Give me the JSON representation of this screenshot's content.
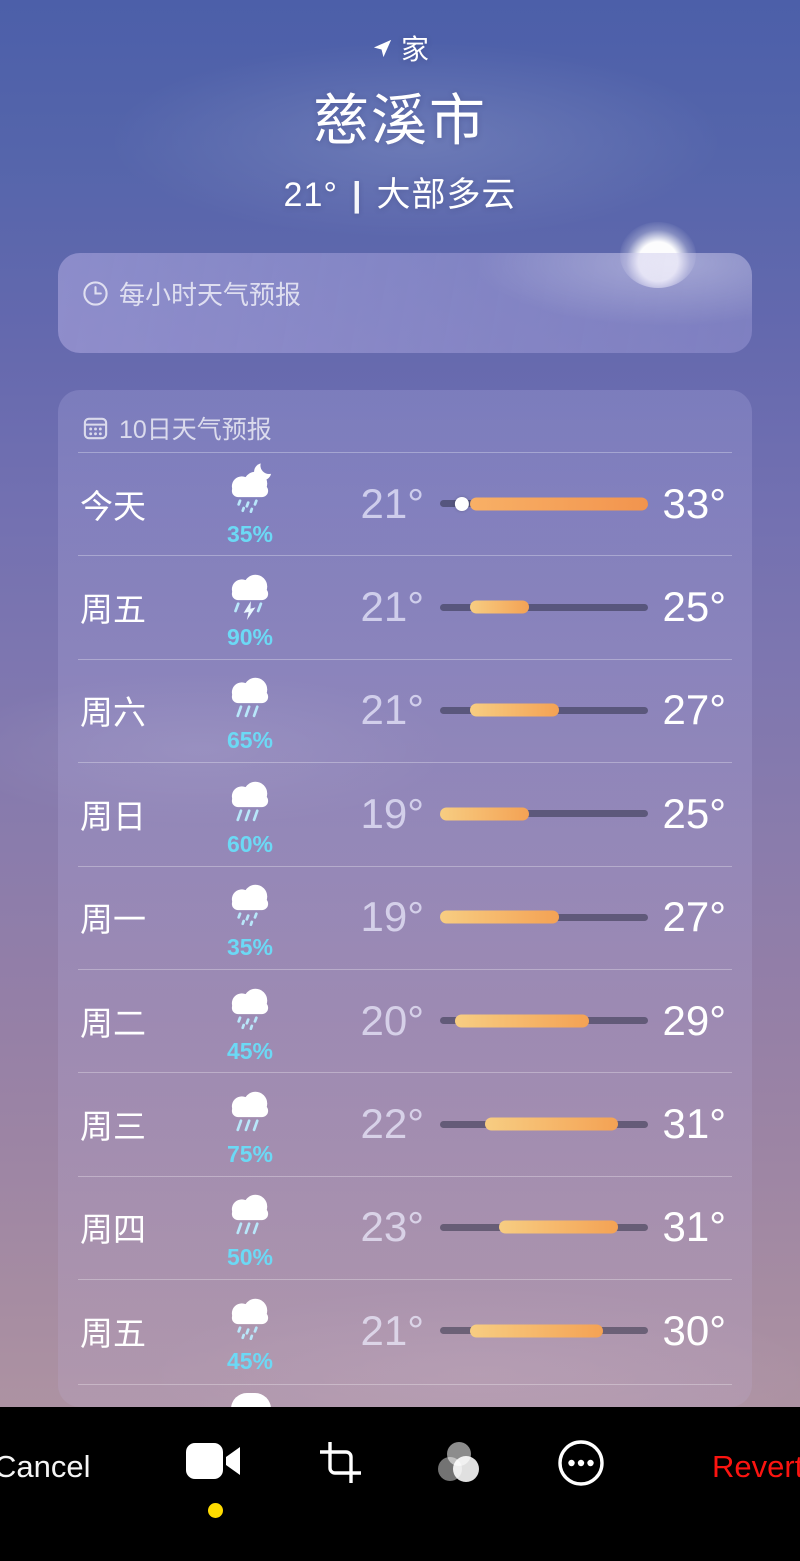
{
  "header": {
    "home_label": "家",
    "city": "慈溪市",
    "current_temp": "21°",
    "separator": "|",
    "condition": "大部多云"
  },
  "hourly_card": {
    "title": "每小时天气预报",
    "icon": "clock-icon"
  },
  "daily_card": {
    "title": "10日天气预报",
    "icon": "calendar-icon",
    "scale_min": 19,
    "scale_max": 33,
    "days": [
      {
        "day": "今天",
        "icon": "cloud-moon-drizzle",
        "precip": "35%",
        "low": "21°",
        "high": "33°",
        "low_val": 21,
        "high_val": 33,
        "current": 21
      },
      {
        "day": "周五",
        "icon": "cloud-bolt-rain",
        "precip": "90%",
        "low": "21°",
        "high": "25°",
        "low_val": 21,
        "high_val": 25
      },
      {
        "day": "周六",
        "icon": "cloud-rain",
        "precip": "65%",
        "low": "21°",
        "high": "27°",
        "low_val": 21,
        "high_val": 27
      },
      {
        "day": "周日",
        "icon": "cloud-rain",
        "precip": "60%",
        "low": "19°",
        "high": "25°",
        "low_val": 19,
        "high_val": 25
      },
      {
        "day": "周一",
        "icon": "cloud-drizzle",
        "precip": "35%",
        "low": "19°",
        "high": "27°",
        "low_val": 19,
        "high_val": 27
      },
      {
        "day": "周二",
        "icon": "cloud-drizzle",
        "precip": "45%",
        "low": "20°",
        "high": "29°",
        "low_val": 20,
        "high_val": 29
      },
      {
        "day": "周三",
        "icon": "cloud-rain",
        "precip": "75%",
        "low": "22°",
        "high": "31°",
        "low_val": 22,
        "high_val": 31
      },
      {
        "day": "周四",
        "icon": "cloud-rain",
        "precip": "50%",
        "low": "23°",
        "high": "31°",
        "low_val": 23,
        "high_val": 31
      },
      {
        "day": "周五",
        "icon": "cloud-drizzle",
        "precip": "45%",
        "low": "21°",
        "high": "30°",
        "low_val": 21,
        "high_val": 30
      }
    ]
  },
  "toolbar": {
    "cancel_label": "Cancel",
    "revert_label": "Revert",
    "icons": [
      "video-camera",
      "crop",
      "filters",
      "more"
    ]
  },
  "colors": {
    "precip_cyan": "#6cd9f5",
    "bar_track": "rgba(44,46,68,0.52)",
    "bar_gradient_start": "#f7cd82",
    "bar_gradient_end": "#f4a254",
    "today_bar_start": "#f8b066",
    "today_bar_end": "#f2944e",
    "revert_red": "#fb1410",
    "record_dot_yellow": "#ffdc00",
    "toolbar_black": "#000000"
  }
}
